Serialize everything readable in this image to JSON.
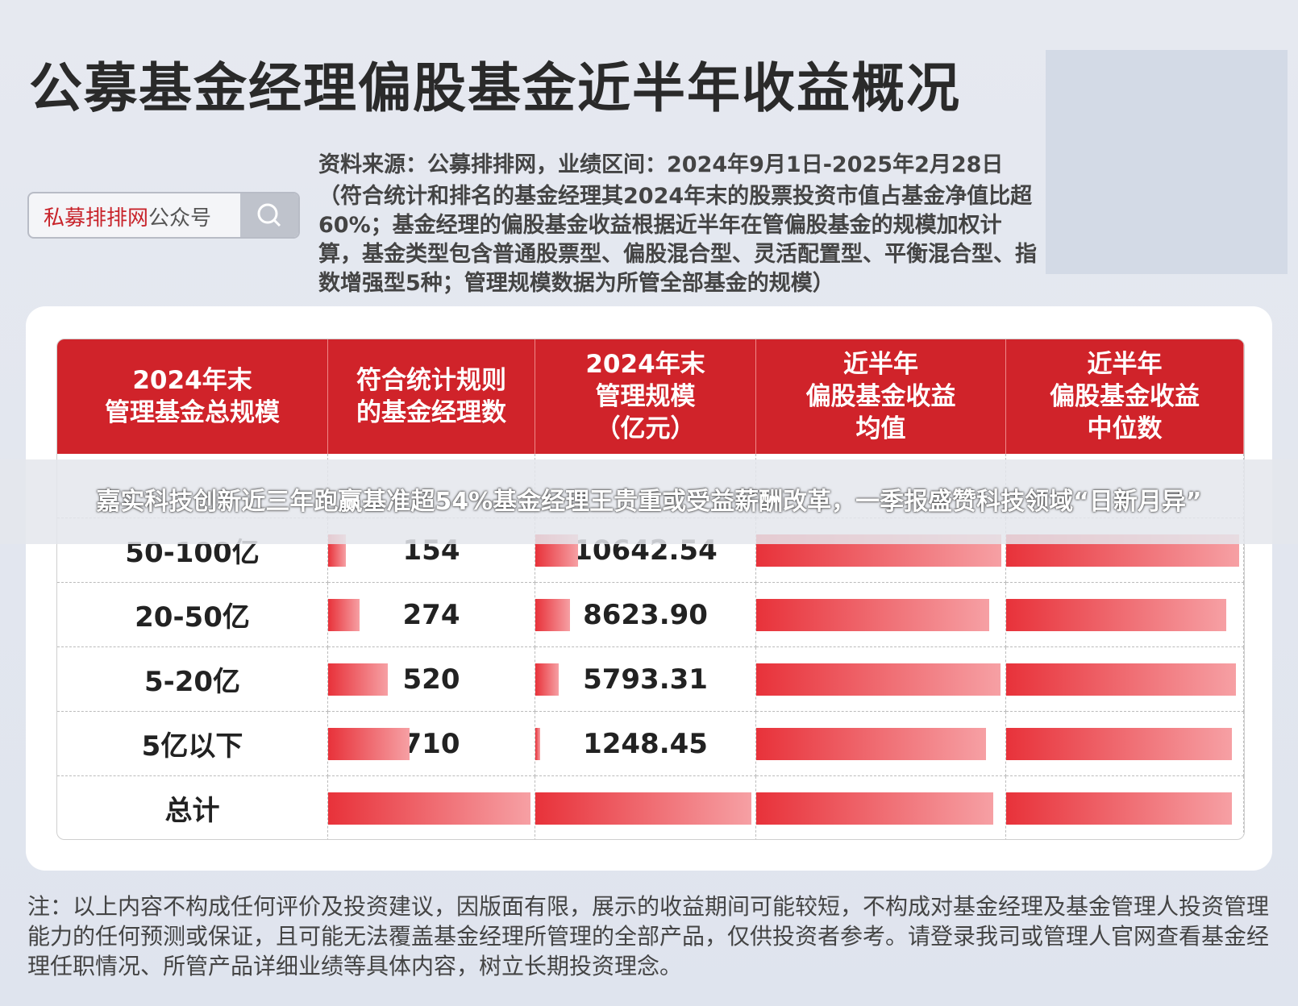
{
  "title": "公募基金经理偏股基金近半年收益概况",
  "search_box": {
    "brand": "私募排排网",
    "suffix": "公众号"
  },
  "source": "资料来源：公募排排网，业绩区间：2024年9月1日-2025年2月28日",
  "criteria": "（符合统计和排名的基金经理其2024年末的股票投资市值占基金净值比超60%；基金经理的偏股基金收益根据近半年在管偏股基金的规模加权计算，基金类型包含普通股票型、偏股混合型、灵活配置型、平衡混合型、指数增强型5种；管理规模数据为所管全部基金的规模）",
  "table": {
    "headers": [
      [
        "2024年末",
        "管理基金总规模"
      ],
      [
        "符合统计规则",
        "的基金经理数"
      ],
      [
        "2024年末",
        "管理规模",
        "（亿元）"
      ],
      [
        "近半年",
        "偏股基金收益",
        "均值"
      ],
      [
        "近半年",
        "偏股基金收益",
        "中位数"
      ]
    ],
    "rows": [
      [
        "50-100亿",
        "154",
        "10642.54",
        "20.39%",
        "18.27%"
      ],
      [
        "20-50亿",
        "274",
        "8623.90",
        "19.41%",
        "17.27%"
      ],
      [
        "5-20亿",
        "520",
        "5793.31",
        "20.30%",
        "18.03%"
      ],
      [
        "5亿以下",
        "710",
        "1248.45",
        "19.13%",
        "17.68%"
      ],
      [
        "总计",
        "1766",
        "53655.83",
        "19.72%",
        "17.73%"
      ]
    ]
  },
  "overlay_headline": "嘉实科技创新近三年跑赢基准超54%基金经理王贵重或受益薪酬改革，一季报盛赞科技领域“日新月异”",
  "note": "注：以上内容不构成任何评价及投资建议，因版面有限，展示的收益期间可能较短，不构成对基金经理及基金管理人投资管理能力的任何预测或保证，且可能无法覆盖基金经理所管理的全部产品，仅供投资者参考。请登录我司或管理人官网查看基金经理任职情况、所管产品详细业绩等具体内容，树立长期投资理念。"
}
